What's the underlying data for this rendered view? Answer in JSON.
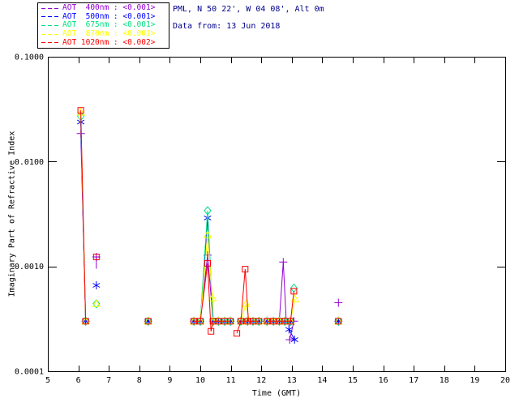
{
  "header": {
    "site_line": "PML, N 50 22', W 04 08', Alt 0m",
    "date_line": "Data from: 13 Jun 2018",
    "color": "#00008b"
  },
  "legend": {
    "items": [
      {
        "label": "AOT  400nm : <0.001>",
        "color": "#9400d3"
      },
      {
        "label": "AOT  500nm : <0.001>",
        "color": "#0000ff"
      },
      {
        "label": "AOT  675nm : <0.001>",
        "color": "#00e080"
      },
      {
        "label": "AOT  870nm : <0.001>",
        "color": "#ffff00"
      },
      {
        "label": "AOT 1020nm : <0.002>",
        "color": "#ff0000"
      }
    ]
  },
  "chart_data": {
    "type": "line",
    "title": "PML, N 50 22', W 04 08', Alt 0m",
    "subtitle": "Data from: 13 Jun 2018",
    "xlabel": "Time (GMT)",
    "ylabel": "Imaginary Part of Refractive Index",
    "xlim": [
      5,
      20
    ],
    "ylim": [
      0.0001,
      0.1
    ],
    "yscale": "log",
    "grid": false,
    "legend_position": "top-left-outside",
    "xticks": [
      5,
      6,
      7,
      8,
      9,
      10,
      11,
      12,
      13,
      14,
      15,
      16,
      17,
      18,
      19,
      20
    ],
    "yticks": [
      {
        "value": 0.0001,
        "label": "0.0001"
      },
      {
        "value": 0.001,
        "label": "0.0010"
      },
      {
        "value": 0.01,
        "label": "0.0100"
      },
      {
        "value": 0.1,
        "label": "0.1000"
      }
    ],
    "baseline_value": 0.0003,
    "baseline_runs": [
      [
        9.79,
        10.0
      ],
      [
        10.42,
        10.59,
        10.8,
        10.99
      ],
      [
        11.33,
        11.55,
        11.73,
        11.92
      ],
      [
        12.19,
        12.4,
        12.59,
        12.77,
        12.96
      ]
    ],
    "baseline_singles": [
      6.24,
      8.29,
      14.53
    ],
    "series": [
      {
        "name": "AOT 400nm",
        "aot_value": "<0.001>",
        "color": "#9400d3",
        "marker": "plus",
        "segments": [
          [
            [
              6.08,
              0.0185
            ],
            [
              6.24,
              0.0003
            ]
          ],
          [
            [
              6.59,
              0.00123
            ],
            [
              6.59,
              0.00095
            ]
          ],
          [
            [
              10.0,
              0.0003
            ],
            [
              10.24,
              0.00128
            ],
            [
              10.42,
              0.0003
            ]
          ],
          [
            [
              12.59,
              0.0003
            ],
            [
              12.72,
              0.0011
            ],
            [
              12.82,
              0.0003
            ]
          ],
          [
            [
              13.07,
              0.0003
            ],
            [
              12.93,
              0.0002
            ]
          ]
        ],
        "points": [
          [
            6.08,
            0.0185
          ],
          [
            6.59,
            0.00123
          ],
          [
            10.24,
            0.00128
          ],
          [
            12.72,
            0.0011
          ],
          [
            12.93,
            0.0002
          ],
          [
            13.07,
            0.0003
          ],
          [
            14.53,
            0.00045
          ]
        ]
      },
      {
        "name": "AOT 500nm",
        "aot_value": "<0.001>",
        "color": "#0000ff",
        "marker": "asterisk",
        "segments": [
          [
            [
              6.08,
              0.0238
            ],
            [
              6.24,
              0.0003
            ]
          ],
          [
            [
              10.0,
              0.0003
            ],
            [
              10.24,
              0.0029
            ],
            [
              10.42,
              0.0003
            ]
          ],
          [
            [
              12.91,
              0.0003
            ],
            [
              12.91,
              0.00025
            ],
            [
              13.09,
              0.0002
            ]
          ]
        ],
        "points": [
          [
            6.08,
            0.0238
          ],
          [
            6.59,
            0.00066
          ],
          [
            10.24,
            0.0029
          ],
          [
            12.91,
            0.00025
          ],
          [
            13.09,
            0.0002
          ]
        ]
      },
      {
        "name": "AOT 675nm",
        "aot_value": "<0.001>",
        "color": "#00e080",
        "marker": "diamond",
        "segments": [
          [
            [
              6.08,
              0.027
            ],
            [
              6.24,
              0.0003
            ]
          ],
          [
            [
              10.0,
              0.0003
            ],
            [
              10.24,
              0.0034
            ],
            [
              10.42,
              0.0003
            ]
          ]
        ],
        "points": [
          [
            6.08,
            0.027
          ],
          [
            6.59,
            0.00044
          ],
          [
            10.24,
            0.0034
          ],
          [
            13.07,
            0.00062
          ]
        ]
      },
      {
        "name": "AOT 870nm",
        "aot_value": "<0.001>",
        "color": "#ffff00",
        "marker": "triangle",
        "segments": [
          [
            [
              6.08,
              0.0295
            ],
            [
              6.24,
              0.0003
            ]
          ],
          [
            [
              10.0,
              0.0003
            ],
            [
              10.24,
              0.002
            ],
            [
              10.4,
              0.0005
            ],
            [
              10.45,
              0.0003
            ]
          ],
          [
            [
              11.33,
              0.0003
            ],
            [
              11.5,
              0.00044
            ],
            [
              11.6,
              0.0003
            ]
          ],
          [
            [
              12.96,
              0.0003
            ],
            [
              13.1,
              0.00049
            ]
          ]
        ],
        "points": [
          [
            6.08,
            0.0295
          ],
          [
            6.59,
            0.00044
          ],
          [
            10.24,
            0.002
          ],
          [
            10.4,
            0.0005
          ],
          [
            11.5,
            0.00044
          ],
          [
            13.1,
            0.00049
          ]
        ]
      },
      {
        "name": "AOT 1020nm",
        "aot_value": "<0.002>",
        "color": "#ff0000",
        "marker": "square",
        "segments": [
          [
            [
              6.08,
              0.0307
            ],
            [
              6.24,
              0.0003
            ]
          ],
          [
            [
              10.0,
              0.0003
            ],
            [
              10.24,
              0.00107
            ],
            [
              10.35,
              0.00024
            ],
            [
              10.42,
              0.0003
            ]
          ],
          [
            [
              11.2,
              0.00023
            ],
            [
              11.33,
              0.0003
            ]
          ],
          [
            [
              11.33,
              0.0003
            ],
            [
              11.47,
              0.00094
            ],
            [
              11.58,
              0.0003
            ]
          ],
          [
            [
              12.96,
              0.0003
            ],
            [
              13.07,
              0.00058
            ]
          ]
        ],
        "points": [
          [
            6.08,
            0.0307
          ],
          [
            6.59,
            0.00123
          ],
          [
            10.24,
            0.00107
          ],
          [
            10.35,
            0.00024
          ],
          [
            11.2,
            0.00023
          ],
          [
            11.47,
            0.00094
          ],
          [
            13.07,
            0.00058
          ]
        ]
      }
    ]
  }
}
